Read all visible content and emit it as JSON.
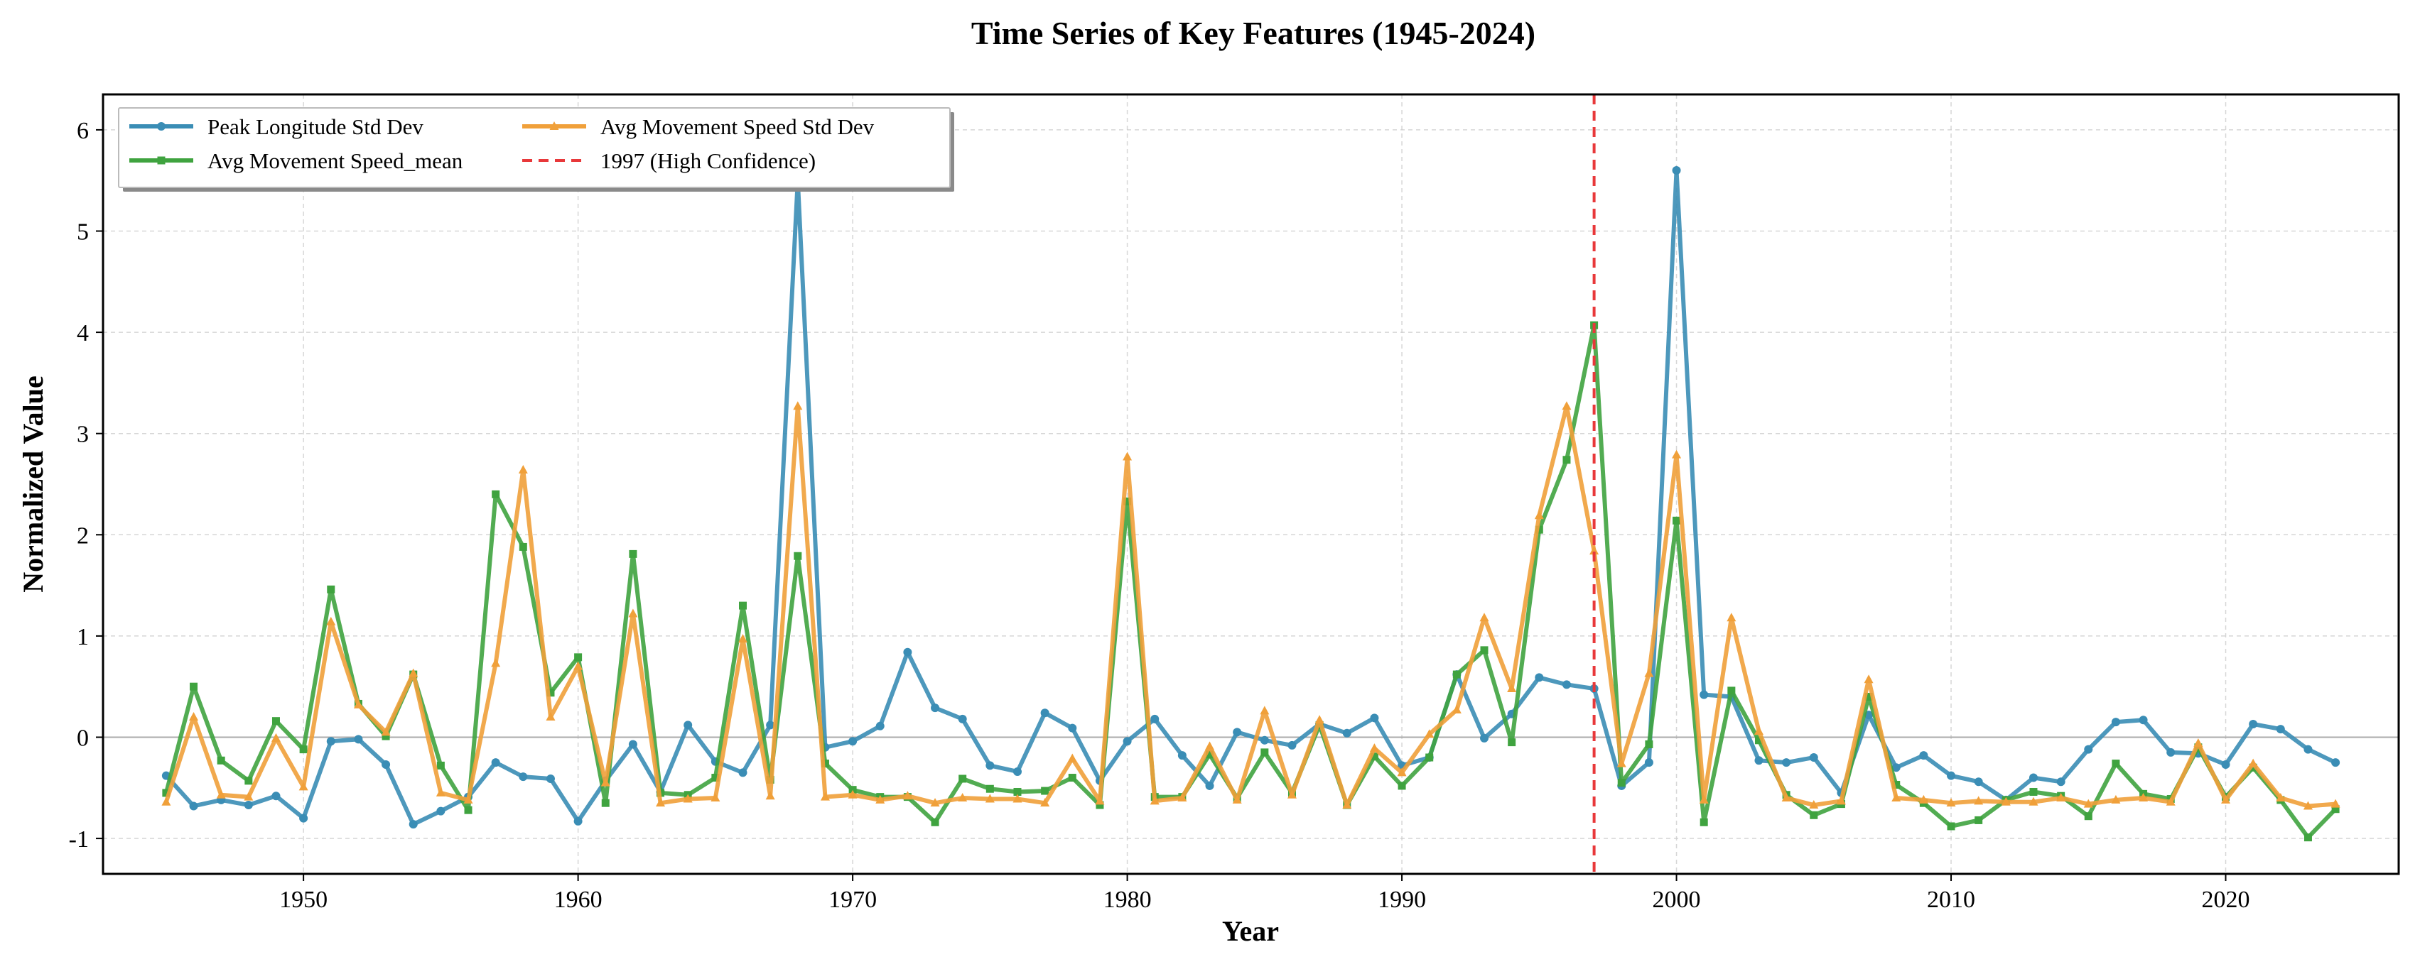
{
  "chart_data": {
    "type": "line",
    "title": "Time Series of Key Features (1945-2024)",
    "xlabel": "Year",
    "ylabel": "Normalized Value",
    "xlim": [
      1942.7,
      2026.3
    ],
    "ylim": [
      -1.35,
      6.35
    ],
    "xticks": [
      1950,
      1960,
      1970,
      1980,
      1990,
      2000,
      2010,
      2020
    ],
    "xtick_labels": [
      "1950",
      "1960",
      "1970",
      "1980",
      "1990",
      "2000",
      "2010",
      "2020"
    ],
    "yticks": [
      -1,
      0,
      1,
      2,
      3,
      4,
      5,
      6
    ],
    "ytick_labels": [
      "-1",
      "0",
      "1",
      "2",
      "3",
      "4",
      "5",
      "6"
    ],
    "grid": true,
    "legend_position": "top-left",
    "x": [
      1945,
      1946,
      1947,
      1948,
      1949,
      1950,
      1951,
      1952,
      1953,
      1954,
      1955,
      1956,
      1957,
      1958,
      1959,
      1960,
      1961,
      1962,
      1963,
      1964,
      1965,
      1966,
      1967,
      1968,
      1969,
      1970,
      1971,
      1972,
      1973,
      1974,
      1975,
      1976,
      1977,
      1978,
      1979,
      1980,
      1981,
      1982,
      1983,
      1984,
      1985,
      1986,
      1987,
      1988,
      1989,
      1990,
      1991,
      1992,
      1993,
      1994,
      1995,
      1996,
      1997,
      1998,
      1999,
      2000,
      2001,
      2002,
      2003,
      2004,
      2005,
      2006,
      2007,
      2008,
      2009,
      2010,
      2011,
      2012,
      2013,
      2014,
      2015,
      2016,
      2017,
      2018,
      2019,
      2020,
      2021,
      2022,
      2023,
      2024
    ],
    "series": [
      {
        "name": "Peak Longitude Std Dev",
        "color": "#3a8db5",
        "marker": "circle",
        "values": [
          -0.38,
          -0.68,
          -0.62,
          -0.67,
          -0.58,
          -0.8,
          -0.04,
          -0.02,
          -0.27,
          -0.86,
          -0.73,
          -0.59,
          -0.25,
          -0.39,
          -0.41,
          -0.83,
          -0.43,
          -0.07,
          -0.54,
          0.12,
          -0.24,
          -0.35,
          0.12,
          5.5,
          -0.1,
          -0.04,
          0.11,
          0.84,
          0.29,
          0.18,
          -0.28,
          -0.34,
          0.24,
          0.09,
          -0.43,
          -0.04,
          0.18,
          -0.18,
          -0.48,
          0.05,
          -0.03,
          -0.08,
          0.13,
          0.04,
          0.19,
          -0.28,
          -0.2,
          0.62,
          -0.01,
          0.23,
          0.59,
          0.52,
          0.48,
          -0.48,
          -0.25,
          5.6,
          0.42,
          0.4,
          -0.23,
          -0.25,
          -0.2,
          -0.55,
          0.22,
          -0.3,
          -0.18,
          -0.38,
          -0.44,
          -0.62,
          -0.4,
          -0.44,
          -0.12,
          0.15,
          0.17,
          -0.15,
          -0.16,
          -0.27,
          0.13,
          0.08,
          -0.12,
          -0.25
        ]
      },
      {
        "name": "Avg Movement Speed_mean",
        "color": "#3fa33f",
        "marker": "square",
        "values": [
          -0.55,
          0.5,
          -0.23,
          -0.43,
          0.16,
          -0.12,
          1.46,
          0.33,
          0.01,
          0.62,
          -0.28,
          -0.72,
          2.4,
          1.88,
          0.44,
          0.79,
          -0.65,
          1.81,
          -0.55,
          -0.57,
          -0.4,
          1.3,
          -0.42,
          1.79,
          -0.26,
          -0.52,
          -0.59,
          -0.59,
          -0.84,
          -0.41,
          -0.51,
          -0.54,
          -0.53,
          -0.4,
          -0.67,
          2.33,
          -0.59,
          -0.59,
          -0.17,
          -0.6,
          -0.15,
          -0.55,
          0.12,
          -0.67,
          -0.19,
          -0.48,
          -0.2,
          0.62,
          0.86,
          -0.05,
          2.05,
          2.74,
          4.07,
          -0.45,
          -0.07,
          2.14,
          -0.84,
          0.46,
          -0.03,
          -0.57,
          -0.77,
          -0.66,
          0.4,
          -0.47,
          -0.65,
          -0.88,
          -0.82,
          -0.62,
          -0.54,
          -0.58,
          -0.78,
          -0.26,
          -0.56,
          -0.61,
          -0.1,
          -0.59,
          -0.3,
          -0.62,
          -0.99,
          -0.71
        ]
      },
      {
        "name": "Avg Movement Speed Std Dev",
        "color": "#f0a03a",
        "marker": "triangle",
        "values": [
          -0.64,
          0.2,
          -0.57,
          -0.59,
          -0.01,
          -0.49,
          1.14,
          0.32,
          0.05,
          0.63,
          -0.55,
          -0.62,
          0.73,
          2.64,
          0.2,
          0.7,
          -0.45,
          1.22,
          -0.65,
          -0.61,
          -0.6,
          0.97,
          -0.58,
          3.27,
          -0.59,
          -0.57,
          -0.62,
          -0.58,
          -0.65,
          -0.6,
          -0.61,
          -0.61,
          -0.65,
          -0.21,
          -0.63,
          2.77,
          -0.63,
          -0.6,
          -0.09,
          -0.62,
          0.26,
          -0.57,
          0.17,
          -0.67,
          -0.11,
          -0.35,
          0.03,
          0.27,
          1.18,
          0.48,
          2.19,
          3.27,
          1.84,
          -0.26,
          0.63,
          2.79,
          -0.62,
          1.18,
          0.06,
          -0.6,
          -0.67,
          -0.63,
          0.57,
          -0.6,
          -0.62,
          -0.65,
          -0.63,
          -0.64,
          -0.64,
          -0.6,
          -0.66,
          -0.62,
          -0.6,
          -0.64,
          -0.06,
          -0.62,
          -0.26,
          -0.6,
          -0.68,
          -0.66
        ]
      }
    ],
    "vline": {
      "x": 1997,
      "label": "1997 (High Confidence)",
      "color": "#e8383a",
      "style": "dashed"
    }
  }
}
